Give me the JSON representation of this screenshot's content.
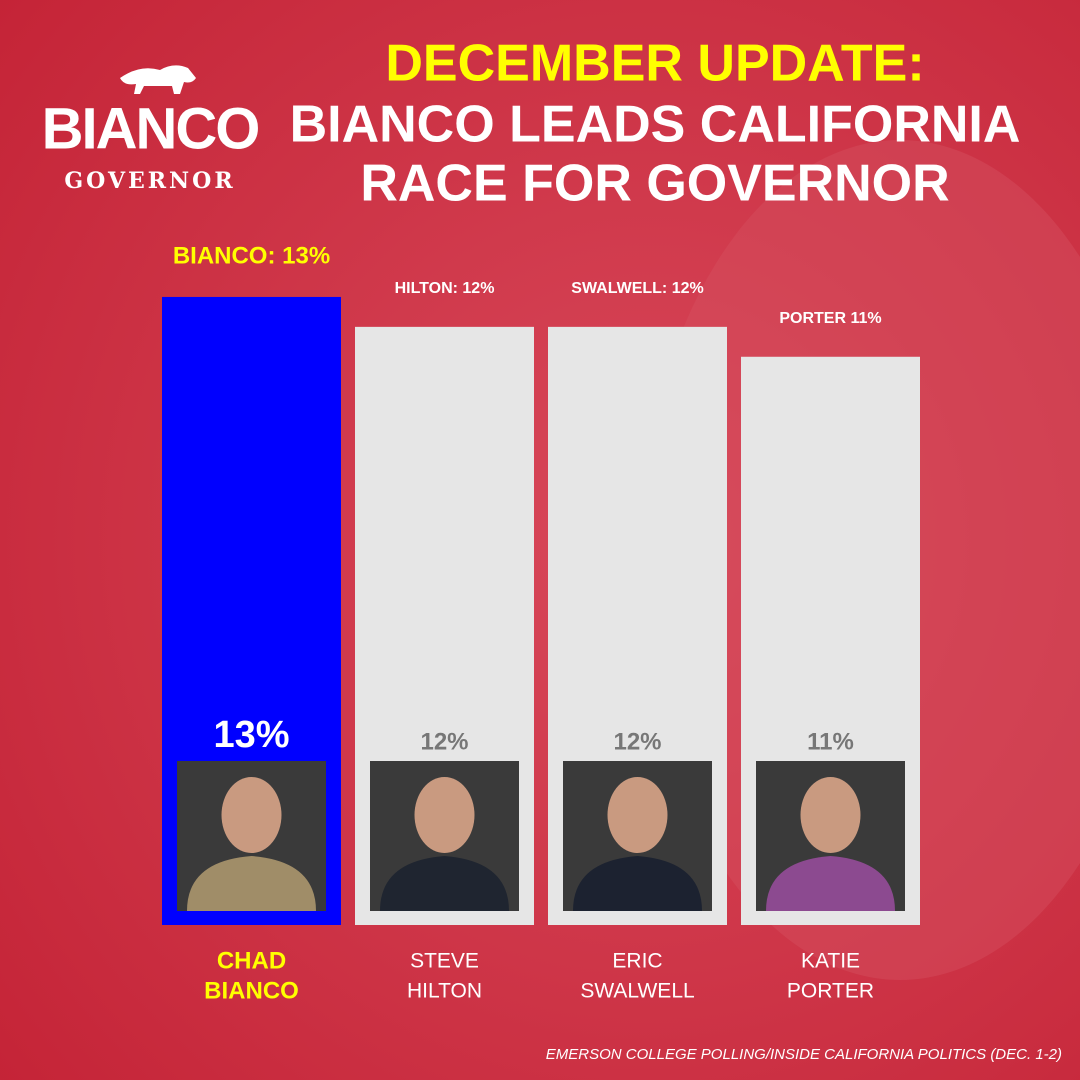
{
  "chart_data": {
    "type": "bar",
    "logo": "BIANCO",
    "logo_subtitle": "GOVERNOR",
    "title": "DECEMBER UPDATE:",
    "subtitle": [
      "BIANCO LEADS CALIFORNIA",
      "RACE FOR GOVERNOR"
    ],
    "categories": [
      "CHAD BIANCO",
      "STEVE HILTON",
      "ERIC SWALWELL",
      "KATIE PORTER"
    ],
    "values": [
      13,
      12,
      12,
      11
    ],
    "value_labels": [
      "13%",
      "12%",
      "12%",
      "11%"
    ],
    "annotations": [
      "BIANCO: 13%",
      "HILTON: 12%",
      "SWALWELL: 12%",
      "PORTER 11%"
    ],
    "colors": [
      "#0000ff",
      "#e6e6e6",
      "#e6e6e6",
      "#e6e6e6"
    ],
    "label_colors": [
      "#ffff00",
      "#ffffff",
      "#ffffff",
      "#ffffff"
    ],
    "value_label_colors": [
      "#ffffff",
      "#777777",
      "#777777",
      "#777777"
    ],
    "ylim": [
      -8,
      13.5
    ],
    "source": "EMERSON COLLEGE POLLING/INSIDE CALIFORNIA POLITICS (DEC. 1-2)"
  }
}
